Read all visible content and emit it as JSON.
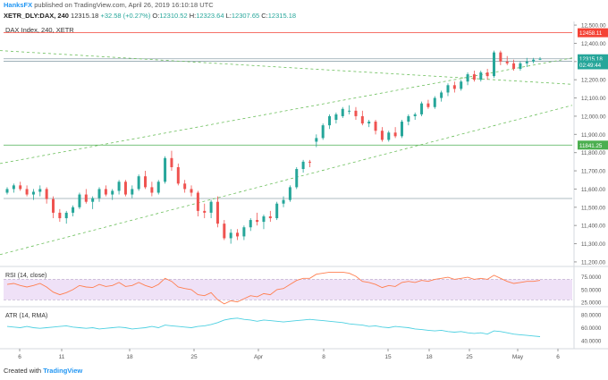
{
  "header": {
    "author": "HanksFX",
    "published_text": "published on TradingView.com, April 26, 2019 16:10:18 UTC"
  },
  "quote": {
    "symbol": "XETR_DLY:DAX, 240",
    "last": "12315.18",
    "change": "+32.58 (+0.27%)",
    "o_label": "O:",
    "o": "12310.52",
    "h_label": "H:",
    "h": "12323.64",
    "l_label": "L:",
    "l": "12307.65",
    "c_label": "C:",
    "c": "12315.18"
  },
  "footer": {
    "created_with": "Created with",
    "brand": "TradingView"
  },
  "colors": {
    "up": "#26a69a",
    "down": "#ef5350",
    "rsi": "#ff7f50",
    "atr": "#4dd0e1",
    "trend": "#6cbf5c",
    "hline_green": "#4caf50",
    "hline_red": "#f44336",
    "hline_gray": "#90a4ae"
  },
  "chart_data": [
    {
      "type": "candlestick",
      "title": "DAX Index, 240, XETR",
      "ylim": [
        11180,
        12520
      ],
      "y_ticks": [
        11200,
        11300,
        11400,
        11500,
        11600,
        11700,
        11800,
        11900,
        12000,
        12100,
        12200,
        12300,
        12400,
        12500
      ],
      "y_tick_labels": [
        "11,200.00",
        "11,300.00",
        "11,400.00",
        "11,500.00",
        "11,600.00",
        "11,700.00",
        "11,800.00",
        "11,900.00",
        "12,000.00",
        "12,100.00",
        "12,200.00",
        "12,300.00",
        "12,400.00",
        "12,500.00"
      ],
      "x_ticks": [
        "6",
        "11",
        "18",
        "25",
        "Apr",
        "8",
        "15",
        "18",
        "25",
        "May",
        "6"
      ],
      "price_labels": [
        {
          "text": "12458.11",
          "value": 12458.11,
          "color": "#f44336"
        },
        {
          "text": "12315.18",
          "value": 12315.18,
          "color": "#26a69a"
        },
        {
          "text": "02:49:44",
          "value": 12282,
          "color": "#26a69a"
        },
        {
          "text": "11841.25",
          "value": 11841.25,
          "color": "#4caf50"
        }
      ],
      "horizontal_levels": [
        {
          "value": 12458.11,
          "color": "#f44336"
        },
        {
          "value": 12315,
          "color": "#90a4ae"
        },
        {
          "value": 12302,
          "color": "#90a4ae"
        },
        {
          "value": 11841.25,
          "color": "#4caf50"
        },
        {
          "value": 11548,
          "color": "#90a4ae"
        }
      ],
      "candles": [
        [
          11580,
          11610,
          11570,
          11600
        ],
        [
          11600,
          11630,
          11580,
          11620
        ],
        [
          11620,
          11640,
          11590,
          11600
        ],
        [
          11600,
          11620,
          11560,
          11570
        ],
        [
          11570,
          11600,
          11540,
          11585
        ],
        [
          11585,
          11620,
          11560,
          11600
        ],
        [
          11600,
          11610,
          11520,
          11545
        ],
        [
          11545,
          11560,
          11440,
          11470
        ],
        [
          11470,
          11490,
          11420,
          11440
        ],
        [
          11440,
          11480,
          11410,
          11470
        ],
        [
          11470,
          11510,
          11450,
          11500
        ],
        [
          11500,
          11580,
          11490,
          11570
        ],
        [
          11570,
          11600,
          11520,
          11530
        ],
        [
          11530,
          11560,
          11490,
          11550
        ],
        [
          11550,
          11610,
          11530,
          11600
        ],
        [
          11600,
          11620,
          11560,
          11570
        ],
        [
          11570,
          11600,
          11540,
          11590
        ],
        [
          11590,
          11650,
          11570,
          11640
        ],
        [
          11640,
          11650,
          11560,
          11570
        ],
        [
          11570,
          11620,
          11550,
          11600
        ],
        [
          11600,
          11680,
          11590,
          11670
        ],
        [
          11670,
          11700,
          11600,
          11610
        ],
        [
          11610,
          11640,
          11560,
          11580
        ],
        [
          11580,
          11650,
          11570,
          11640
        ],
        [
          11640,
          11780,
          11630,
          11770
        ],
        [
          11770,
          11810,
          11700,
          11720
        ],
        [
          11720,
          11740,
          11620,
          11630
        ],
        [
          11630,
          11650,
          11580,
          11600
        ],
        [
          11600,
          11620,
          11560,
          11580
        ],
        [
          11580,
          11590,
          11450,
          11480
        ],
        [
          11480,
          11520,
          11440,
          11470
        ],
        [
          11470,
          11540,
          11440,
          11530
        ],
        [
          11530,
          11560,
          11390,
          11410
        ],
        [
          11410,
          11430,
          11320,
          11330
        ],
        [
          11330,
          11380,
          11300,
          11360
        ],
        [
          11360,
          11380,
          11320,
          11340
        ],
        [
          11340,
          11400,
          11320,
          11390
        ],
        [
          11390,
          11440,
          11370,
          11430
        ],
        [
          11430,
          11470,
          11400,
          11420
        ],
        [
          11420,
          11460,
          11380,
          11450
        ],
        [
          11450,
          11480,
          11420,
          11440
        ],
        [
          11440,
          11530,
          11430,
          11520
        ],
        [
          11520,
          11560,
          11500,
          11540
        ],
        [
          11540,
          11620,
          11530,
          11610
        ],
        [
          11610,
          11720,
          11600,
          11710
        ],
        [
          11710,
          11760,
          11690,
          11750
        ],
        [
          11750,
          11760,
          11720,
          11745
        ],
        [
          11860,
          11900,
          11830,
          11880
        ],
        [
          11880,
          11960,
          11870,
          11950
        ],
        [
          11950,
          12010,
          11930,
          12000
        ],
        [
          11980,
          12020,
          11960,
          12010
        ],
        [
          12000,
          12050,
          11990,
          12040
        ],
        [
          12030,
          12060,
          12010,
          12030
        ],
        [
          12030,
          12050,
          11980,
          12000
        ],
        [
          12000,
          12030,
          11950,
          11960
        ],
        [
          11960,
          11980,
          11940,
          11970
        ],
        [
          11970,
          11980,
          11900,
          11920
        ],
        [
          11920,
          11940,
          11860,
          11870
        ],
        [
          11870,
          11920,
          11860,
          11910
        ],
        [
          11910,
          11940,
          11880,
          11890
        ],
        [
          11890,
          11980,
          11880,
          11970
        ],
        [
          11970,
          12010,
          11950,
          12000
        ],
        [
          12000,
          12020,
          11980,
          12010
        ],
        [
          12010,
          12080,
          12000,
          12070
        ],
        [
          12070,
          12090,
          12040,
          12050
        ],
        [
          12050,
          12110,
          12040,
          12100
        ],
        [
          12100,
          12140,
          12080,
          12130
        ],
        [
          12130,
          12180,
          12110,
          12170
        ],
        [
          12170,
          12190,
          12130,
          12150
        ],
        [
          12150,
          12200,
          12140,
          12190
        ],
        [
          12190,
          12240,
          12170,
          12230
        ],
        [
          12230,
          12250,
          12190,
          12200
        ],
        [
          12200,
          12250,
          12190,
          12240
        ],
        [
          12240,
          12260,
          12200,
          12220
        ],
        [
          12220,
          12360,
          12210,
          12350
        ],
        [
          12350,
          12360,
          12280,
          12300
        ],
        [
          12300,
          12330,
          12280,
          12290
        ],
        [
          12290,
          12310,
          12250,
          12260
        ],
        [
          12260,
          12300,
          12250,
          12290
        ],
        [
          12290,
          12320,
          12270,
          12300
        ],
        [
          12300,
          12320,
          12290,
          12310
        ],
        [
          12310,
          12324,
          12308,
          12315
        ]
      ],
      "trend_lines": [
        {
          "from": {
            "x": "start",
            "y": 12360
          },
          "to": {
            "x": "end",
            "y": 12175
          }
        },
        {
          "from": {
            "x": "start",
            "y": 11740
          },
          "to": {
            "x": "end",
            "y": 12320
          }
        },
        {
          "from": {
            "x": "start",
            "y": 11240
          },
          "to": {
            "x": "end",
            "y": 12060
          }
        }
      ]
    },
    {
      "type": "line",
      "title": "RSI (14, close)",
      "ylim": [
        20,
        90
      ],
      "y_ticks": [
        75,
        50,
        25
      ],
      "y_tick_labels": [
        "75.0000",
        "50.0000",
        "25.0000"
      ],
      "bands": [
        30,
        70
      ],
      "values": [
        60,
        62,
        58,
        55,
        58,
        62,
        55,
        45,
        40,
        44,
        50,
        58,
        55,
        54,
        60,
        56,
        58,
        64,
        56,
        58,
        64,
        58,
        54,
        60,
        72,
        66,
        55,
        52,
        50,
        40,
        38,
        44,
        30,
        22,
        28,
        26,
        32,
        38,
        36,
        42,
        40,
        50,
        52,
        60,
        68,
        72,
        72,
        80,
        82,
        84,
        84,
        84,
        82,
        76,
        66,
        64,
        60,
        54,
        58,
        56,
        64,
        66,
        64,
        68,
        66,
        70,
        72,
        74,
        70,
        72,
        74,
        70,
        72,
        70,
        78,
        72,
        66,
        62,
        64,
        66,
        66,
        68
      ]
    },
    {
      "type": "line",
      "title": "ATR (14, RMA)",
      "ylim": [
        30,
        90
      ],
      "y_ticks": [
        80,
        60,
        40
      ],
      "y_tick_labels": [
        "80.0000",
        "60.0000",
        "40.0000"
      ],
      "values": [
        62,
        61,
        60,
        62,
        60,
        59,
        60,
        61,
        62,
        63,
        61,
        60,
        59,
        60,
        58,
        59,
        60,
        61,
        60,
        58,
        59,
        60,
        62,
        60,
        64,
        63,
        62,
        61,
        60,
        62,
        63,
        65,
        68,
        72,
        74,
        75,
        73,
        72,
        70,
        72,
        71,
        70,
        69,
        70,
        71,
        72,
        73,
        72,
        71,
        70,
        69,
        68,
        66,
        65,
        64,
        62,
        63,
        61,
        60,
        62,
        61,
        60,
        58,
        57,
        56,
        55,
        56,
        54,
        53,
        54,
        52,
        51,
        52,
        50,
        55,
        54,
        52,
        50,
        49,
        48,
        47,
        46
      ]
    }
  ]
}
